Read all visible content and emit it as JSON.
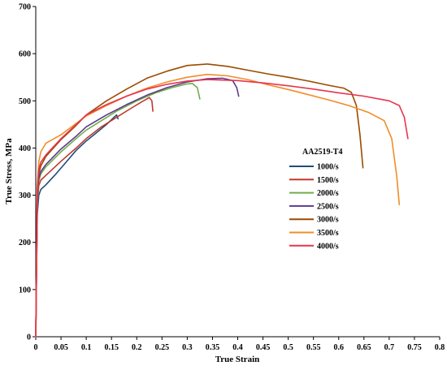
{
  "chart_data": {
    "type": "line",
    "title": "",
    "xlabel": "True Strain",
    "ylabel": "True Stress, MPa",
    "xlim": [
      0,
      0.8
    ],
    "ylim": [
      0,
      700
    ],
    "xticks": [
      "0",
      "0.05",
      "0.1",
      "0.15",
      "0.2",
      "0.25",
      "0.3",
      "0.35",
      "0.4",
      "0.45",
      "0.5",
      "0.55",
      "0.6",
      "0.65",
      "0.7",
      "0.75",
      "0.8"
    ],
    "xtick_values": [
      0,
      0.05,
      0.1,
      0.15,
      0.2,
      0.25,
      0.3,
      0.35,
      0.4,
      0.45,
      0.5,
      0.55,
      0.6,
      0.65,
      0.7,
      0.75,
      0.8
    ],
    "yticks": [
      "0",
      "100",
      "200",
      "300",
      "400",
      "500",
      "600",
      "700"
    ],
    "ytick_values": [
      0,
      100,
      200,
      300,
      400,
      500,
      600,
      700
    ],
    "grid": false,
    "legend_title": "AA2519-T4",
    "legend_position": "right",
    "series": [
      {
        "name": "1000/s",
        "color": "#1f4e79",
        "points": [
          [
            0,
            0
          ],
          [
            0.003,
            260
          ],
          [
            0.006,
            300
          ],
          [
            0.01,
            312
          ],
          [
            0.02,
            322
          ],
          [
            0.04,
            345
          ],
          [
            0.06,
            370
          ],
          [
            0.08,
            395
          ],
          [
            0.1,
            415
          ],
          [
            0.12,
            432
          ],
          [
            0.14,
            450
          ],
          [
            0.155,
            465
          ],
          [
            0.16,
            470
          ],
          [
            0.163,
            462
          ]
        ]
      },
      {
        "name": "1500/s",
        "color": "#c0392b",
        "points": [
          [
            0,
            0
          ],
          [
            0.003,
            280
          ],
          [
            0.006,
            320
          ],
          [
            0.01,
            332
          ],
          [
            0.02,
            342
          ],
          [
            0.05,
            372
          ],
          [
            0.08,
            400
          ],
          [
            0.1,
            420
          ],
          [
            0.13,
            445
          ],
          [
            0.16,
            465
          ],
          [
            0.19,
            485
          ],
          [
            0.21,
            498
          ],
          [
            0.225,
            507
          ],
          [
            0.23,
            500
          ],
          [
            0.232,
            478
          ]
        ]
      },
      {
        "name": "2000/s",
        "color": "#70ad47",
        "points": [
          [
            0,
            0
          ],
          [
            0.003,
            290
          ],
          [
            0.006,
            330
          ],
          [
            0.01,
            345
          ],
          [
            0.02,
            360
          ],
          [
            0.05,
            392
          ],
          [
            0.08,
            420
          ],
          [
            0.1,
            438
          ],
          [
            0.13,
            458
          ],
          [
            0.16,
            478
          ],
          [
            0.2,
            500
          ],
          [
            0.24,
            518
          ],
          [
            0.27,
            528
          ],
          [
            0.3,
            536
          ],
          [
            0.31,
            537
          ],
          [
            0.32,
            528
          ],
          [
            0.325,
            504
          ]
        ]
      },
      {
        "name": "2500/s",
        "color": "#5b3a8c",
        "points": [
          [
            0,
            0
          ],
          [
            0.003,
            295
          ],
          [
            0.006,
            335
          ],
          [
            0.01,
            350
          ],
          [
            0.02,
            365
          ],
          [
            0.05,
            398
          ],
          [
            0.08,
            425
          ],
          [
            0.1,
            445
          ],
          [
            0.14,
            470
          ],
          [
            0.18,
            492
          ],
          [
            0.22,
            512
          ],
          [
            0.26,
            528
          ],
          [
            0.3,
            540
          ],
          [
            0.34,
            547
          ],
          [
            0.37,
            548
          ],
          [
            0.39,
            543
          ],
          [
            0.398,
            528
          ],
          [
            0.402,
            510
          ]
        ]
      },
      {
        "name": "3000/s",
        "color": "#9c4a00",
        "points": [
          [
            0,
            0
          ],
          [
            0.003,
            300
          ],
          [
            0.006,
            345
          ],
          [
            0.01,
            362
          ],
          [
            0.02,
            382
          ],
          [
            0.05,
            418
          ],
          [
            0.08,
            448
          ],
          [
            0.1,
            470
          ],
          [
            0.14,
            500
          ],
          [
            0.18,
            525
          ],
          [
            0.22,
            548
          ],
          [
            0.26,
            563
          ],
          [
            0.3,
            575
          ],
          [
            0.34,
            578
          ],
          [
            0.38,
            573
          ],
          [
            0.42,
            565
          ],
          [
            0.46,
            557
          ],
          [
            0.5,
            550
          ],
          [
            0.54,
            542
          ],
          [
            0.58,
            533
          ],
          [
            0.61,
            527
          ],
          [
            0.625,
            518
          ],
          [
            0.635,
            490
          ],
          [
            0.642,
            430
          ],
          [
            0.648,
            358
          ]
        ]
      },
      {
        "name": "3500/s",
        "color": "#f28c28",
        "points": [
          [
            0,
            0
          ],
          [
            0.003,
            320
          ],
          [
            0.006,
            370
          ],
          [
            0.01,
            392
          ],
          [
            0.02,
            410
          ],
          [
            0.05,
            428
          ],
          [
            0.08,
            452
          ],
          [
            0.1,
            468
          ],
          [
            0.14,
            490
          ],
          [
            0.18,
            510
          ],
          [
            0.22,
            527
          ],
          [
            0.26,
            540
          ],
          [
            0.3,
            550
          ],
          [
            0.34,
            556
          ],
          [
            0.38,
            553
          ],
          [
            0.42,
            545
          ],
          [
            0.46,
            534
          ],
          [
            0.5,
            524
          ],
          [
            0.54,
            513
          ],
          [
            0.58,
            502
          ],
          [
            0.62,
            490
          ],
          [
            0.66,
            475
          ],
          [
            0.69,
            458
          ],
          [
            0.705,
            420
          ],
          [
            0.715,
            340
          ],
          [
            0.72,
            280
          ]
        ]
      },
      {
        "name": "4000/s",
        "color": "#e8344e",
        "points": [
          [
            0,
            0
          ],
          [
            0.003,
            310
          ],
          [
            0.006,
            355
          ],
          [
            0.01,
            370
          ],
          [
            0.02,
            385
          ],
          [
            0.05,
            420
          ],
          [
            0.08,
            450
          ],
          [
            0.1,
            470
          ],
          [
            0.14,
            492
          ],
          [
            0.18,
            510
          ],
          [
            0.22,
            525
          ],
          [
            0.26,
            535
          ],
          [
            0.3,
            542
          ],
          [
            0.34,
            545
          ],
          [
            0.4,
            543
          ],
          [
            0.45,
            538
          ],
          [
            0.5,
            532
          ],
          [
            0.55,
            525
          ],
          [
            0.6,
            517
          ],
          [
            0.65,
            510
          ],
          [
            0.7,
            500
          ],
          [
            0.72,
            490
          ],
          [
            0.73,
            465
          ],
          [
            0.737,
            420
          ]
        ]
      }
    ]
  }
}
